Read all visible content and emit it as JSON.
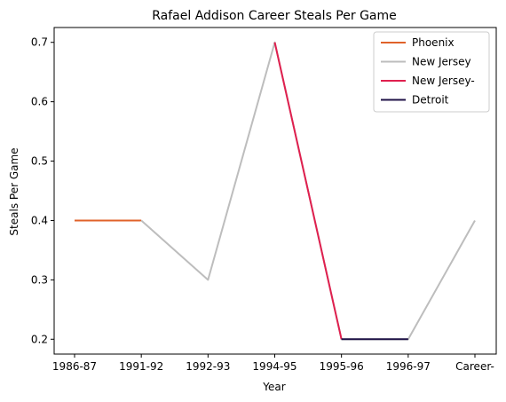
{
  "chart_data": {
    "type": "line",
    "title": "Rafael Addison Career Steals Per Game",
    "xlabel": "Year",
    "ylabel": "Steals Per Game",
    "categories": [
      "1986-87",
      "1991-92",
      "1992-93",
      "1994-95",
      "1995-96",
      "1996-97",
      "Career-"
    ],
    "y_ticks": [
      0.2,
      0.3,
      0.4,
      0.5,
      0.6,
      0.7
    ],
    "y_tick_labels": [
      "0.2",
      "0.3",
      "0.4",
      "0.5",
      "0.6",
      "0.7"
    ],
    "ylim": [
      0.175,
      0.725
    ],
    "grid": false,
    "legend_position": "top-right",
    "series": [
      {
        "name": "Phoenix",
        "color": "#e0622a",
        "x": [
          "1986-87",
          "1991-92"
        ],
        "values": [
          0.4,
          0.4
        ]
      },
      {
        "name": "New Jersey",
        "color": "#bdbdbd",
        "x": [
          "1991-92",
          "1992-93",
          "1994-95",
          "1995-96",
          "1996-97",
          "Career-"
        ],
        "values": [
          0.4,
          0.3,
          0.7,
          0.2,
          0.2,
          0.4
        ]
      },
      {
        "name": "New Jersey-",
        "color": "#e0204f",
        "x": [
          "1994-95",
          "1995-96"
        ],
        "values": [
          0.7,
          0.2
        ]
      },
      {
        "name": "Detroit",
        "color": "#1f1247",
        "x": [
          "1995-96",
          "1996-97"
        ],
        "values": [
          0.2,
          0.2
        ]
      }
    ]
  }
}
